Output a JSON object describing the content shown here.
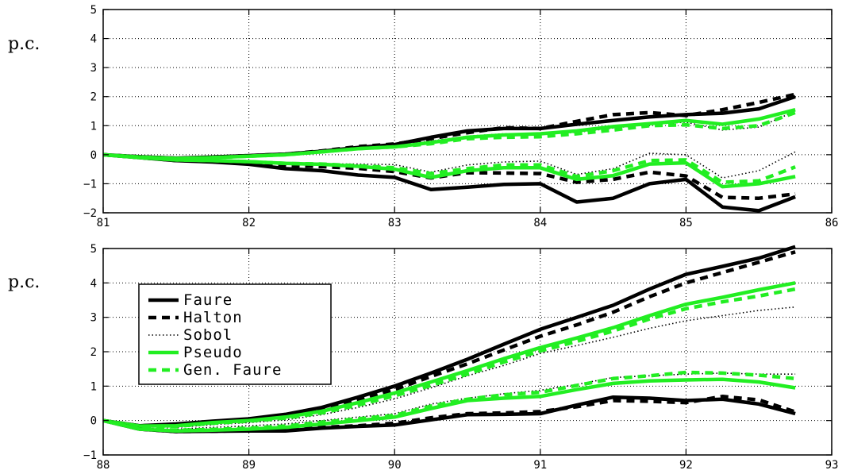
{
  "chart_data": [
    {
      "type": "line",
      "ylabel": "p.c.",
      "xlim": [
        81,
        86
      ],
      "ylim": [
        -2,
        5
      ],
      "xticks": [
        "81",
        "82",
        "83",
        "84",
        "85",
        "86"
      ],
      "yticks": [
        "5",
        "4",
        "3",
        "2",
        "1",
        "0",
        "−1",
        "−2"
      ],
      "grid": true,
      "legend": false,
      "x": [
        81,
        81.25,
        81.5,
        81.75,
        82,
        82.25,
        82.5,
        82.75,
        83,
        83.25,
        83.5,
        83.75,
        84,
        84.25,
        84.5,
        84.75,
        85,
        85.25,
        85.5,
        85.75
      ],
      "series": [
        {
          "name": "Faure",
          "color": "#000000",
          "dash": "solid",
          "values": [
            0,
            -0.07,
            -0.12,
            -0.08,
            -0.03,
            0.02,
            0.12,
            0.25,
            0.35,
            0.6,
            0.82,
            0.9,
            0.9,
            1.05,
            1.18,
            1.3,
            1.38,
            1.43,
            1.58,
            2.0
          ]
        },
        {
          "name": "Halton",
          "color": "#000000",
          "dash": "dashed",
          "values": [
            0,
            -0.07,
            -0.12,
            -0.08,
            -0.03,
            0.02,
            0.13,
            0.28,
            0.37,
            0.55,
            0.76,
            0.93,
            0.9,
            1.15,
            1.38,
            1.45,
            1.35,
            1.55,
            1.8,
            2.08
          ]
        },
        {
          "name": "Sobol",
          "color": "#000000",
          "dash": "dotted",
          "values": [
            0,
            -0.08,
            -0.14,
            -0.1,
            -0.05,
            0.0,
            0.1,
            0.23,
            0.31,
            0.47,
            0.64,
            0.72,
            0.72,
            0.77,
            0.92,
            1.05,
            1.12,
            0.85,
            0.95,
            1.5
          ]
        },
        {
          "name": "Pseudo",
          "color": "#22ee22",
          "dash": "solid",
          "values": [
            0,
            -0.08,
            -0.13,
            -0.1,
            -0.05,
            0.0,
            0.1,
            0.21,
            0.27,
            0.42,
            0.6,
            0.68,
            0.72,
            0.82,
            0.97,
            1.07,
            1.18,
            1.05,
            1.23,
            1.55
          ]
        },
        {
          "name": "Gen. Faure",
          "color": "#22ee22",
          "dash": "dashed",
          "values": [
            0,
            -0.08,
            -0.13,
            -0.1,
            -0.05,
            0.0,
            0.1,
            0.21,
            0.27,
            0.38,
            0.55,
            0.6,
            0.62,
            0.72,
            0.85,
            1.0,
            1.03,
            0.9,
            1.0,
            1.45
          ]
        },
        {
          "name": "Faure",
          "color": "#000000",
          "dash": "solid",
          "values": [
            0,
            -0.1,
            -0.2,
            -0.25,
            -0.33,
            -0.48,
            -0.55,
            -0.7,
            -0.78,
            -1.2,
            -1.12,
            -1.02,
            -1.0,
            -1.63,
            -1.5,
            -1.0,
            -0.85,
            -1.8,
            -1.93,
            -1.45
          ]
        },
        {
          "name": "Halton",
          "color": "#000000",
          "dash": "dashed",
          "values": [
            0,
            -0.1,
            -0.2,
            -0.22,
            -0.28,
            -0.37,
            -0.41,
            -0.47,
            -0.58,
            -0.8,
            -0.62,
            -0.63,
            -0.65,
            -0.95,
            -0.85,
            -0.6,
            -0.73,
            -1.47,
            -1.5,
            -1.35
          ]
        },
        {
          "name": "Sobol",
          "color": "#000000",
          "dash": "dotted",
          "values": [
            0,
            -0.1,
            -0.18,
            -0.2,
            -0.24,
            -0.3,
            -0.32,
            -0.32,
            -0.34,
            -0.6,
            -0.35,
            -0.25,
            -0.22,
            -0.68,
            -0.48,
            0.05,
            0.0,
            -0.8,
            -0.55,
            0.1
          ]
        },
        {
          "name": "Pseudo",
          "color": "#22ee22",
          "dash": "solid",
          "values": [
            0,
            -0.1,
            -0.18,
            -0.2,
            -0.24,
            -0.3,
            -0.33,
            -0.4,
            -0.5,
            -0.78,
            -0.55,
            -0.45,
            -0.45,
            -0.85,
            -0.72,
            -0.32,
            -0.28,
            -1.1,
            -1.0,
            -0.75
          ]
        },
        {
          "name": "Gen. Faure",
          "color": "#22ee22",
          "dash": "dashed",
          "values": [
            0,
            -0.1,
            -0.18,
            -0.2,
            -0.24,
            -0.3,
            -0.32,
            -0.38,
            -0.45,
            -0.65,
            -0.48,
            -0.35,
            -0.35,
            -0.75,
            -0.55,
            -0.2,
            -0.18,
            -0.95,
            -0.9,
            -0.42
          ]
        }
      ]
    },
    {
      "type": "line",
      "ylabel": "p.c.",
      "xlim": [
        88,
        93
      ],
      "ylim": [
        -1,
        5
      ],
      "xticks": [
        "88",
        "89",
        "90",
        "91",
        "92",
        "93"
      ],
      "yticks": [
        "5",
        "4",
        "3",
        "2",
        "1",
        "0",
        "−1"
      ],
      "grid": true,
      "legend": true,
      "legend_position": "left",
      "legend_entries": [
        {
          "label": "Faure",
          "color": "#000000",
          "dash": "solid"
        },
        {
          "label": "Halton",
          "color": "#000000",
          "dash": "dashed"
        },
        {
          "label": "Sobol",
          "color": "#000000",
          "dash": "dotted"
        },
        {
          "label": "Pseudo",
          "color": "#22ee22",
          "dash": "solid"
        },
        {
          "label": "Gen. Faure",
          "color": "#22ee22",
          "dash": "dashed"
        }
      ],
      "x": [
        88,
        88.25,
        88.5,
        88.75,
        89,
        89.25,
        89.5,
        89.75,
        90,
        90.25,
        90.5,
        90.75,
        91,
        91.25,
        91.5,
        91.75,
        92,
        92.25,
        92.5,
        92.75
      ],
      "series": [
        {
          "name": "Faure",
          "color": "#000000",
          "dash": "solid",
          "values": [
            0,
            -0.15,
            -0.1,
            -0.02,
            0.05,
            0.18,
            0.38,
            0.68,
            1.0,
            1.38,
            1.78,
            2.22,
            2.65,
            3.0,
            3.35,
            3.82,
            4.25,
            4.48,
            4.72,
            5.05
          ]
        },
        {
          "name": "Halton",
          "color": "#000000",
          "dash": "dashed",
          "values": [
            0,
            -0.15,
            -0.12,
            -0.03,
            0.02,
            0.12,
            0.3,
            0.58,
            0.9,
            1.28,
            1.65,
            2.05,
            2.45,
            2.78,
            3.15,
            3.6,
            4.0,
            4.3,
            4.6,
            4.9
          ]
        },
        {
          "name": "Sobol",
          "color": "#000000",
          "dash": "dotted",
          "values": [
            0,
            -0.17,
            -0.2,
            -0.12,
            -0.06,
            0.02,
            0.17,
            0.38,
            0.63,
            0.95,
            1.3,
            1.6,
            1.95,
            2.18,
            2.42,
            2.68,
            2.9,
            3.05,
            3.2,
            3.3
          ]
        },
        {
          "name": "Pseudo",
          "color": "#22ee22",
          "dash": "solid",
          "values": [
            0,
            -0.16,
            -0.15,
            -0.06,
            0.0,
            0.1,
            0.27,
            0.52,
            0.8,
            1.12,
            1.45,
            1.8,
            2.12,
            2.4,
            2.7,
            3.05,
            3.38,
            3.58,
            3.8,
            4.0
          ]
        },
        {
          "name": "Gen. Faure",
          "color": "#22ee22",
          "dash": "dashed",
          "values": [
            0,
            -0.16,
            -0.17,
            -0.08,
            -0.02,
            0.07,
            0.22,
            0.45,
            0.72,
            1.02,
            1.35,
            1.7,
            2.02,
            2.3,
            2.6,
            2.95,
            3.25,
            3.45,
            3.62,
            3.82
          ]
        },
        {
          "name": "Faure",
          "color": "#000000",
          "dash": "solid",
          "values": [
            0,
            -0.25,
            -0.32,
            -0.31,
            -0.3,
            -0.3,
            -0.22,
            -0.17,
            -0.13,
            0.02,
            0.17,
            0.18,
            0.2,
            0.45,
            0.68,
            0.65,
            0.58,
            0.62,
            0.48,
            0.2
          ]
        },
        {
          "name": "Halton",
          "color": "#000000",
          "dash": "dashed",
          "values": [
            0,
            -0.25,
            -0.32,
            -0.31,
            -0.29,
            -0.27,
            -0.2,
            -0.15,
            -0.08,
            0.08,
            0.2,
            0.22,
            0.26,
            0.4,
            0.58,
            0.56,
            0.52,
            0.7,
            0.6,
            0.25
          ]
        },
        {
          "name": "Sobol",
          "color": "#000000",
          "dash": "dotted",
          "values": [
            0,
            -0.22,
            -0.25,
            -0.2,
            -0.15,
            -0.1,
            0.0,
            0.1,
            0.2,
            0.48,
            0.65,
            0.78,
            0.88,
            1.05,
            1.25,
            1.3,
            1.35,
            1.38,
            1.35,
            1.35
          ]
        },
        {
          "name": "Pseudo",
          "color": "#22ee22",
          "dash": "solid",
          "values": [
            0,
            -0.25,
            -0.3,
            -0.28,
            -0.25,
            -0.2,
            -0.1,
            0.0,
            0.1,
            0.35,
            0.58,
            0.65,
            0.7,
            0.9,
            1.08,
            1.15,
            1.18,
            1.2,
            1.12,
            0.95
          ]
        },
        {
          "name": "Gen. Faure",
          "color": "#22ee22",
          "dash": "dashed",
          "values": [
            0,
            -0.24,
            -0.28,
            -0.26,
            -0.22,
            -0.16,
            -0.05,
            0.05,
            0.15,
            0.42,
            0.62,
            0.75,
            0.82,
            1.02,
            1.22,
            1.3,
            1.4,
            1.38,
            1.32,
            1.22
          ]
        }
      ]
    }
  ]
}
